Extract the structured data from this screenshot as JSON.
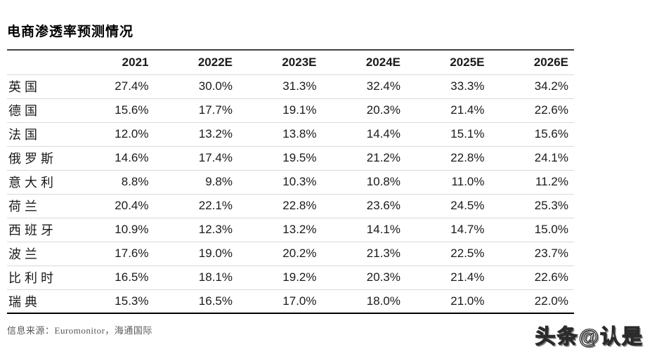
{
  "page": {
    "title": "电商渗透率预测情况",
    "source_note": "信息来源：Euromonitor，海通国际",
    "watermark": "头条@认是"
  },
  "colors": {
    "text": "#1a1a1a",
    "top_rule": "#404040",
    "row_separator": "#d9d9d9",
    "bottom_rule": "#000000",
    "source_text": "#595959",
    "background": "#ffffff"
  },
  "chart_data": {
    "type": "table",
    "title": "电商渗透率预测情况",
    "columns": [
      "",
      "2021",
      "2022E",
      "2023E",
      "2024E",
      "2025E",
      "2026E"
    ],
    "rows": [
      {
        "country": "英国",
        "values": [
          "27.4%",
          "30.0%",
          "31.3%",
          "32.4%",
          "33.3%",
          "34.2%"
        ]
      },
      {
        "country": "德国",
        "values": [
          "15.6%",
          "17.7%",
          "19.1%",
          "20.3%",
          "21.4%",
          "22.6%"
        ]
      },
      {
        "country": "法国",
        "values": [
          "12.0%",
          "13.2%",
          "13.8%",
          "14.4%",
          "15.1%",
          "15.6%"
        ]
      },
      {
        "country": "俄罗斯",
        "values": [
          "14.6%",
          "17.4%",
          "19.5%",
          "21.2%",
          "22.8%",
          "24.1%"
        ]
      },
      {
        "country": "意大利",
        "values": [
          "8.8%",
          "9.8%",
          "10.3%",
          "10.8%",
          "11.0%",
          "11.2%"
        ]
      },
      {
        "country": "荷兰",
        "values": [
          "20.4%",
          "22.1%",
          "22.8%",
          "23.6%",
          "24.5%",
          "25.3%"
        ]
      },
      {
        "country": "西班牙",
        "values": [
          "10.9%",
          "12.3%",
          "13.2%",
          "14.1%",
          "14.7%",
          "15.0%"
        ]
      },
      {
        "country": "波兰",
        "values": [
          "17.6%",
          "19.0%",
          "20.2%",
          "21.3%",
          "22.5%",
          "23.7%"
        ]
      },
      {
        "country": "比利时",
        "values": [
          "16.5%",
          "18.1%",
          "19.2%",
          "20.3%",
          "21.4%",
          "22.6%"
        ]
      },
      {
        "country": "瑞典",
        "values": [
          "15.3%",
          "16.5%",
          "17.0%",
          "18.0%",
          "21.0%",
          "22.0%"
        ]
      }
    ],
    "source": "信息来源：Euromonitor，海通国际"
  }
}
